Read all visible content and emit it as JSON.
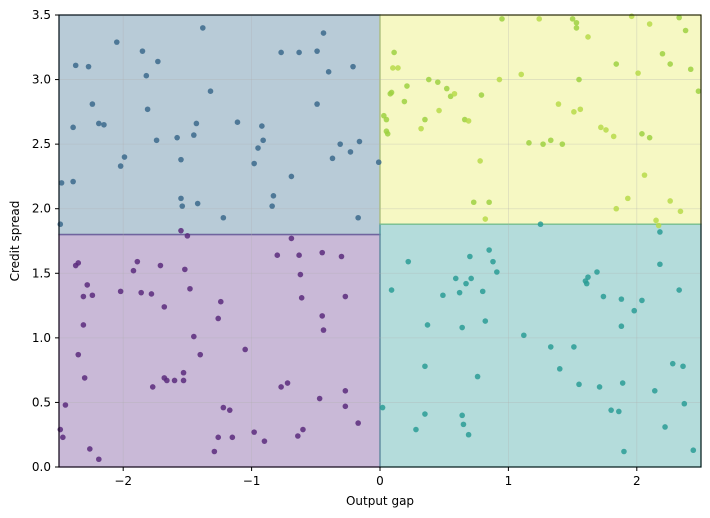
{
  "chart_data": {
    "type": "scatter",
    "title": "",
    "xlabel": "Output gap",
    "ylabel": "Credit spread",
    "xlim": [
      -2.5,
      2.5
    ],
    "ylim": [
      0.0,
      3.5
    ],
    "xticks": [
      -2,
      -1,
      0,
      1,
      2
    ],
    "xtick_labels": [
      "−2",
      "−1",
      "0",
      "1",
      "2"
    ],
    "yticks": [
      0.0,
      0.5,
      1.0,
      1.5,
      2.0,
      2.5,
      3.0,
      3.5
    ],
    "ytick_labels": [
      "0.0",
      "0.5",
      "1.0",
      "1.5",
      "2.0",
      "2.5",
      "3.0",
      "3.5"
    ],
    "grid": true,
    "regions": [
      {
        "x": [
          -2.5,
          0.0
        ],
        "y": [
          1.8,
          3.5
        ],
        "color": "#3b6e8f"
      },
      {
        "x": [
          -2.5,
          0.0
        ],
        "y": [
          0.0,
          1.8
        ],
        "color": "#6a3d8f"
      },
      {
        "x": [
          0.0,
          2.5
        ],
        "y": [
          1.88,
          3.5
        ],
        "color": "#e6ec5a"
      },
      {
        "x": [
          0.0,
          2.5
        ],
        "y": [
          0.0,
          1.88
        ],
        "color": "#2e9e9a"
      }
    ],
    "series": [
      {
        "color": "#3b6a8c",
        "points": [
          [
            -2.48,
            2.2
          ],
          [
            -2.49,
            1.88
          ],
          [
            -2.39,
            2.21
          ],
          [
            -2.39,
            2.63
          ],
          [
            -2.37,
            3.11
          ],
          [
            -2.27,
            3.1
          ],
          [
            -2.24,
            2.81
          ],
          [
            -2.19,
            2.66
          ],
          [
            -2.15,
            2.65
          ],
          [
            -2.05,
            3.29
          ],
          [
            -2.02,
            2.33
          ],
          [
            -1.99,
            2.4
          ],
          [
            -1.85,
            3.22
          ],
          [
            -1.82,
            3.03
          ],
          [
            -1.81,
            2.77
          ],
          [
            -1.73,
            3.14
          ],
          [
            -1.74,
            2.53
          ],
          [
            -1.58,
            2.55
          ],
          [
            -1.55,
            2.08
          ],
          [
            -1.54,
            2.02
          ],
          [
            -1.55,
            2.38
          ],
          [
            -1.45,
            2.57
          ],
          [
            -1.43,
            2.66
          ],
          [
            -1.42,
            2.04
          ],
          [
            -1.38,
            3.4
          ],
          [
            -1.32,
            2.91
          ],
          [
            -1.22,
            1.93
          ],
          [
            -1.11,
            2.67
          ],
          [
            -0.98,
            2.35
          ],
          [
            -0.95,
            2.47
          ],
          [
            -0.91,
            2.53
          ],
          [
            -0.92,
            2.64
          ],
          [
            -0.83,
            2.1
          ],
          [
            -0.84,
            2.02
          ],
          [
            -0.77,
            3.21
          ],
          [
            -0.69,
            2.25
          ],
          [
            -0.63,
            3.21
          ],
          [
            -0.49,
            3.22
          ],
          [
            -0.49,
            2.81
          ],
          [
            -0.44,
            3.36
          ],
          [
            -0.4,
            3.06
          ],
          [
            -0.37,
            2.39
          ],
          [
            -0.31,
            2.5
          ],
          [
            -0.23,
            2.44
          ],
          [
            -0.21,
            3.1
          ],
          [
            -0.16,
            2.52
          ],
          [
            -0.17,
            1.93
          ],
          [
            -0.01,
            2.36
          ]
        ]
      },
      {
        "color": "#5b2a7d",
        "points": [
          [
            -2.49,
            0.29
          ],
          [
            -2.47,
            0.23
          ],
          [
            -2.45,
            0.48
          ],
          [
            -2.37,
            1.56
          ],
          [
            -2.35,
            1.58
          ],
          [
            -2.35,
            0.87
          ],
          [
            -2.31,
            1.32
          ],
          [
            -2.31,
            1.1
          ],
          [
            -2.3,
            0.69
          ],
          [
            -2.28,
            1.41
          ],
          [
            -2.26,
            0.14
          ],
          [
            -2.24,
            1.33
          ],
          [
            -2.19,
            0.06
          ],
          [
            -2.02,
            1.36
          ],
          [
            -1.92,
            1.52
          ],
          [
            -1.89,
            1.59
          ],
          [
            -1.86,
            1.35
          ],
          [
            -1.78,
            1.34
          ],
          [
            -1.77,
            0.62
          ],
          [
            -1.71,
            1.56
          ],
          [
            -1.68,
            0.69
          ],
          [
            -1.66,
            0.67
          ],
          [
            -1.68,
            1.24
          ],
          [
            -1.6,
            0.67
          ],
          [
            -1.55,
            1.83
          ],
          [
            -1.53,
            0.73
          ],
          [
            -1.53,
            0.67
          ],
          [
            -1.5,
            1.79
          ],
          [
            -1.52,
            1.53
          ],
          [
            -1.48,
            1.38
          ],
          [
            -1.45,
            1.01
          ],
          [
            -1.4,
            0.87
          ],
          [
            -1.29,
            0.12
          ],
          [
            -1.26,
            0.23
          ],
          [
            -1.26,
            1.15
          ],
          [
            -1.24,
            1.28
          ],
          [
            -1.22,
            0.46
          ],
          [
            -1.17,
            0.44
          ],
          [
            -1.15,
            0.23
          ],
          [
            -1.05,
            0.91
          ],
          [
            -0.98,
            0.27
          ],
          [
            -0.9,
            0.2
          ],
          [
            -0.77,
            0.62
          ],
          [
            -0.8,
            1.64
          ],
          [
            -0.72,
            0.65
          ],
          [
            -0.69,
            1.77
          ],
          [
            -0.63,
            1.64
          ],
          [
            -0.62,
            1.49
          ],
          [
            -0.64,
            0.24
          ],
          [
            -0.6,
            0.29
          ],
          [
            -0.61,
            1.31
          ],
          [
            -0.47,
            0.53
          ],
          [
            -0.44,
            1.06
          ],
          [
            -0.45,
            1.66
          ],
          [
            -0.45,
            1.17
          ],
          [
            -0.3,
            1.63
          ],
          [
            -0.27,
            1.32
          ],
          [
            -0.27,
            0.59
          ],
          [
            -0.27,
            0.47
          ],
          [
            -0.17,
            0.34
          ]
        ]
      },
      {
        "color": "#9ed142",
        "points": [
          [
            0.03,
            2.72
          ],
          [
            0.05,
            2.69
          ],
          [
            0.06,
            2.58
          ],
          [
            0.05,
            2.6
          ],
          [
            0.08,
            2.89
          ],
          [
            0.09,
            2.9
          ],
          [
            0.11,
            3.21
          ],
          [
            0.19,
            2.83
          ],
          [
            0.21,
            2.95
          ],
          [
            0.35,
            2.69
          ],
          [
            0.38,
            3.0
          ],
          [
            0.45,
            2.98
          ],
          [
            0.52,
            2.93
          ],
          [
            0.55,
            2.87
          ],
          [
            0.66,
            2.69
          ],
          [
            0.73,
            2.05
          ],
          [
            0.79,
            2.88
          ],
          [
            0.85,
            2.05
          ],
          [
            0.95,
            3.47
          ],
          [
            1.16,
            2.51
          ],
          [
            1.27,
            2.5
          ],
          [
            1.33,
            2.53
          ],
          [
            1.42,
            2.5
          ],
          [
            1.5,
            3.47
          ],
          [
            1.53,
            3.44
          ],
          [
            1.53,
            3.4
          ],
          [
            1.55,
            3.0
          ],
          [
            1.84,
            3.12
          ],
          [
            2.04,
            2.58
          ],
          [
            2.1,
            2.55
          ],
          [
            2.2,
            3.2
          ],
          [
            2.26,
            3.12
          ],
          [
            2.33,
            3.48
          ],
          [
            2.38,
            3.38
          ],
          [
            2.42,
            3.08
          ],
          [
            2.48,
            2.91
          ]
        ]
      },
      {
        "color": "#b7db4a",
        "points": [
          [
            0.1,
            3.09
          ],
          [
            0.14,
            3.09
          ],
          [
            0.32,
            2.62
          ],
          [
            0.46,
            2.76
          ],
          [
            0.58,
            2.89
          ],
          [
            0.69,
            2.68
          ],
          [
            0.78,
            2.37
          ],
          [
            0.82,
            1.92
          ],
          [
            0.93,
            3.0
          ],
          [
            1.1,
            3.04
          ],
          [
            1.24,
            3.47
          ],
          [
            1.39,
            2.81
          ],
          [
            1.51,
            2.75
          ],
          [
            1.56,
            2.77
          ],
          [
            1.62,
            3.33
          ],
          [
            1.72,
            2.63
          ],
          [
            1.76,
            2.61
          ],
          [
            1.82,
            2.56
          ],
          [
            1.84,
            2.0
          ],
          [
            1.93,
            2.08
          ],
          [
            1.96,
            3.49
          ],
          [
            2.01,
            3.05
          ],
          [
            2.06,
            2.26
          ],
          [
            2.1,
            3.43
          ],
          [
            2.15,
            1.91
          ],
          [
            2.17,
            1.87
          ],
          [
            2.26,
            2.06
          ],
          [
            2.34,
            1.98
          ]
        ]
      },
      {
        "color": "#2a9c95",
        "points": [
          [
            0.02,
            0.46
          ],
          [
            0.09,
            1.37
          ],
          [
            0.22,
            1.59
          ],
          [
            0.28,
            0.29
          ],
          [
            0.35,
            0.78
          ],
          [
            0.35,
            0.41
          ],
          [
            0.37,
            1.1
          ],
          [
            0.49,
            1.33
          ],
          [
            0.59,
            1.46
          ],
          [
            0.62,
            1.35
          ],
          [
            0.64,
            1.08
          ],
          [
            0.64,
            0.4
          ],
          [
            0.65,
            0.33
          ],
          [
            0.69,
            0.25
          ],
          [
            0.67,
            1.42
          ],
          [
            0.7,
            1.63
          ],
          [
            0.71,
            1.46
          ],
          [
            0.76,
            0.7
          ],
          [
            0.8,
            1.36
          ],
          [
            0.82,
            1.13
          ],
          [
            0.85,
            1.68
          ],
          [
            0.88,
            1.59
          ],
          [
            0.91,
            1.51
          ],
          [
            1.12,
            1.02
          ],
          [
            1.25,
            1.88
          ],
          [
            1.33,
            0.93
          ],
          [
            1.4,
            0.76
          ],
          [
            1.51,
            0.93
          ],
          [
            1.55,
            0.64
          ],
          [
            1.6,
            1.44
          ],
          [
            1.61,
            1.42
          ],
          [
            1.62,
            1.47
          ],
          [
            1.69,
            1.51
          ],
          [
            1.74,
            1.32
          ],
          [
            1.71,
            0.62
          ],
          [
            1.8,
            0.44
          ],
          [
            1.86,
            0.43
          ],
          [
            1.88,
            1.3
          ],
          [
            1.88,
            1.09
          ],
          [
            1.89,
            0.65
          ],
          [
            1.9,
            0.12
          ],
          [
            1.98,
            1.21
          ],
          [
            2.04,
            1.29
          ],
          [
            2.14,
            0.59
          ],
          [
            2.18,
            1.82
          ],
          [
            2.18,
            1.57
          ],
          [
            2.22,
            0.31
          ],
          [
            2.28,
            0.8
          ],
          [
            2.33,
            1.37
          ],
          [
            2.36,
            0.78
          ],
          [
            2.37,
            0.49
          ],
          [
            2.44,
            0.13
          ]
        ]
      }
    ]
  }
}
